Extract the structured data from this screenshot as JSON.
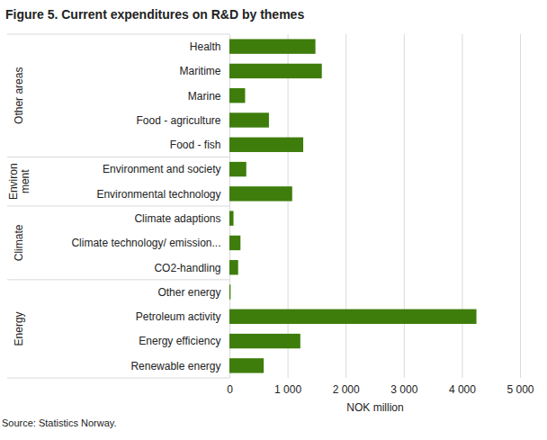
{
  "chart_data": {
    "type": "bar",
    "orientation": "horizontal",
    "title": "Figure 5. Current expenditures on R&D by themes",
    "source": "Source: Statistics Norway.",
    "xlabel": "NOK million",
    "categories": [
      "Health",
      "Maritime",
      "Marine",
      "Food - agriculture",
      "Food - fish",
      "Environment and society",
      "Environmental technology",
      "Climate adaptions",
      "Climate technology/ emission...",
      "CO2-handling",
      "Other energy",
      "Petroleum activity",
      "Energy efficiency",
      "Renewable energy"
    ],
    "values": [
      1480,
      1590,
      270,
      680,
      1270,
      290,
      1080,
      70,
      190,
      150,
      20,
      4250,
      1220,
      590
    ],
    "groups": [
      "Other areas",
      "Other areas",
      "Other areas",
      "Other areas",
      "Other areas",
      "Environ\nment",
      "Environ\nment",
      "Climate",
      "Climate",
      "Climate",
      "Energy",
      "Energy",
      "Energy",
      "Energy"
    ],
    "color": "#3e7d0c",
    "xlim": [
      0,
      5000
    ],
    "xticks": [
      0,
      {
        "value": 1000,
        "label": "1 000"
      },
      {
        "value": 2000,
        "label": "2 000"
      },
      {
        "value": 3000,
        "label": "3 000"
      },
      {
        "value": 4000,
        "label": "4 000"
      },
      {
        "value": 5000,
        "label": "5 000"
      }
    ],
    "grid": true
  }
}
